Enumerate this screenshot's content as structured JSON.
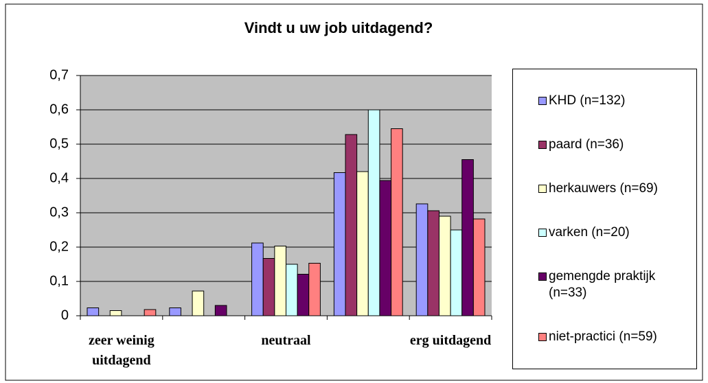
{
  "chart_data": {
    "type": "bar",
    "title": "Vindt u uw job uitdagend?",
    "categories": [
      "zeer weinig uitdagend",
      null,
      "neutraal",
      null,
      "erg uitdagend"
    ],
    "series": [
      {
        "name": "KHD (n=132)",
        "color": "#9999ff",
        "values": [
          0.023,
          0.023,
          0.212,
          0.417,
          0.326
        ]
      },
      {
        "name": "paard (n=36)",
        "color": "#993366",
        "values": [
          0,
          0,
          0.167,
          0.528,
          0.306
        ]
      },
      {
        "name": "herkauwers (n=69)",
        "color": "#ffffcc",
        "values": [
          0.015,
          0.072,
          0.203,
          0.42,
          0.29
        ]
      },
      {
        "name": "varken (n=20)",
        "color": "#ccffff",
        "values": [
          0,
          0,
          0.15,
          0.6,
          0.25
        ]
      },
      {
        "name": "gemengde praktijk (n=33)",
        "color": "#660066",
        "values": [
          0,
          0.03,
          0.121,
          0.394,
          0.455
        ]
      },
      {
        "name": "niet-practici (n=59)",
        "color": "#ff8080",
        "values": [
          0.018,
          0,
          0.153,
          0.545,
          0.282
        ]
      }
    ],
    "ylim": [
      0,
      0.7
    ],
    "yticks": [
      0,
      {
        "value": 0.1,
        "label": "0,1"
      },
      {
        "value": 0.2,
        "label": "0,2"
      },
      {
        "value": 0.3,
        "label": "0,3"
      },
      {
        "value": 0.4,
        "label": "0,4"
      },
      {
        "value": 0.5,
        "label": "0,5"
      },
      {
        "value": 0.6,
        "label": "0,6"
      },
      {
        "value": 0.7,
        "label": "0,7"
      }
    ],
    "grid": true,
    "legend": "right"
  }
}
